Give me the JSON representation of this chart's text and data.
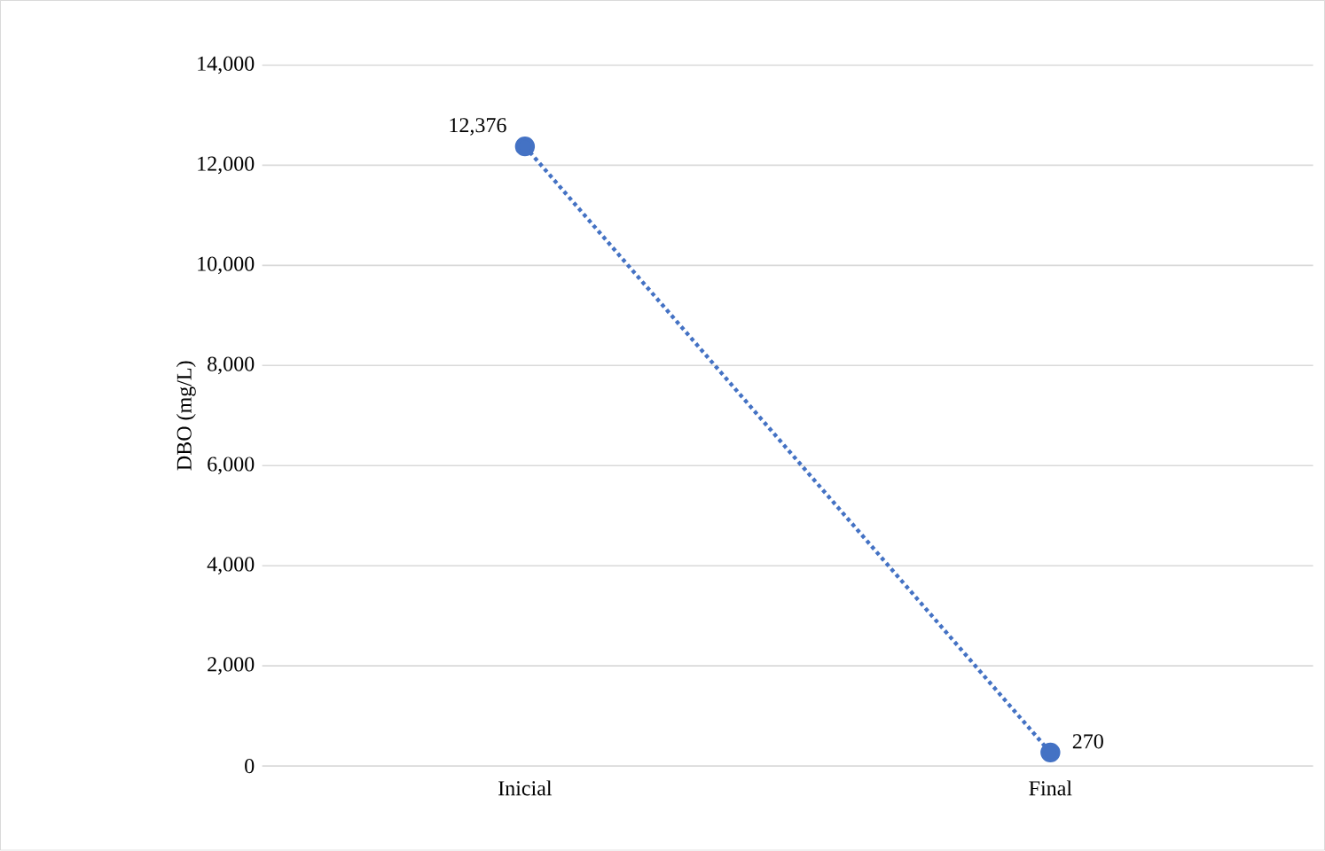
{
  "chart_data": {
    "type": "line",
    "ylabel": "DBO (mg/L)",
    "categories": [
      "Inicial",
      "Final"
    ],
    "series": [
      {
        "color": "#4472c4",
        "values": [
          12376,
          270
        ],
        "value_labels": [
          "12,376",
          "270"
        ]
      }
    ],
    "ylim": [
      0,
      14000
    ],
    "yticks": [
      {
        "value": 0,
        "label": "0"
      },
      {
        "value": 2000,
        "label": "2,000"
      },
      {
        "value": 4000,
        "label": "4,000"
      },
      {
        "value": 6000,
        "label": "6,000"
      },
      {
        "value": 8000,
        "label": "8,000"
      },
      {
        "value": 10000,
        "label": "10,000"
      },
      {
        "value": 12000,
        "label": "12,000"
      },
      {
        "value": 14000,
        "label": "14,000"
      }
    ],
    "grid": "y",
    "marker": "circle",
    "line_style": "dotted"
  }
}
